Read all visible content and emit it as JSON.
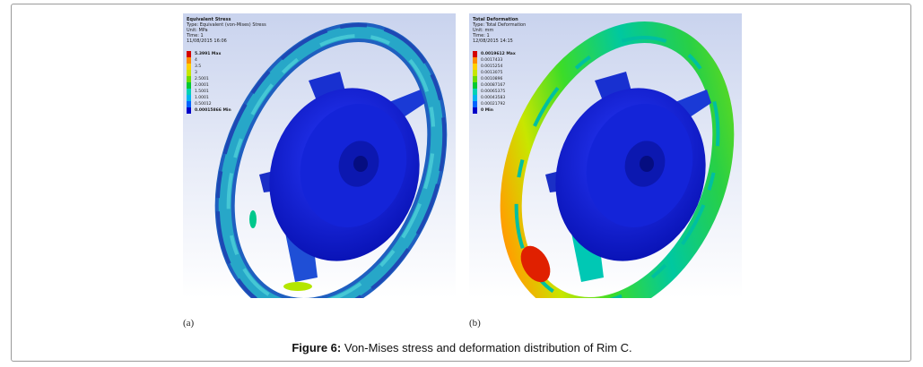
{
  "figure": {
    "caption_label": "Figure 6:",
    "caption_text": "Von-Mises stress and deformation distribution of Rim C."
  },
  "panels": [
    {
      "id": "a",
      "sublabel": "(a)",
      "header": [
        "Equivalent Stress",
        "Type: Equivalent (von-Mises) Stress",
        "Unit: MPa",
        "Time: 1",
        "11/08/2015 16:06"
      ],
      "scale": [
        {
          "label": "5.3991 Max",
          "color": "#d40000",
          "bold": true
        },
        {
          "label": "4",
          "color": "#ff8a00"
        },
        {
          "label": "3.5",
          "color": "#ffd000"
        },
        {
          "label": "3",
          "color": "#c8e600"
        },
        {
          "label": "2.5001",
          "color": "#6bdc00"
        },
        {
          "label": "2.0001",
          "color": "#00c832"
        },
        {
          "label": "1.5001",
          "color": "#00d2b4"
        },
        {
          "label": "1.0001",
          "color": "#00b4f0"
        },
        {
          "label": "0.50012",
          "color": "#0064ff"
        },
        {
          "label": "0.00015866 Min",
          "color": "#0000c8",
          "bold": true
        }
      ]
    },
    {
      "id": "b",
      "sublabel": "(b)",
      "header": [
        "Total Deformation",
        "Type: Total Deformation",
        "Unit: mm",
        "Time: 1",
        "12/08/2015 14:15"
      ],
      "scale": [
        {
          "label": "0.0019612 Max",
          "color": "#d40000",
          "bold": true
        },
        {
          "label": "0.0017433",
          "color": "#ff8a00"
        },
        {
          "label": "0.0015254",
          "color": "#ffd000"
        },
        {
          "label": "0.0013075",
          "color": "#c8e600"
        },
        {
          "label": "0.0010896",
          "color": "#6bdc00"
        },
        {
          "label": "0.00087167",
          "color": "#00c832"
        },
        {
          "label": "0.00065375",
          "color": "#00d2b4"
        },
        {
          "label": "0.00043583",
          "color": "#00b4f0"
        },
        {
          "label": "0.00021792",
          "color": "#0064ff"
        },
        {
          "label": "0 Min",
          "color": "#0000c8",
          "bold": true
        }
      ]
    }
  ]
}
